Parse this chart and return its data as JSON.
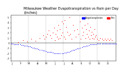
{
  "title": "Milwaukee Weather Evapotranspiration vs Rain per Day\n(Inches)",
  "title_fontsize": 3.5,
  "background_color": "#ffffff",
  "legend_labels": [
    "Evapotranspiration",
    "Rain"
  ],
  "et_color": "#0000ff",
  "rain_color": "#ff0000",
  "xlim": [
    0,
    365
  ],
  "ylim": [
    -0.35,
    0.55
  ],
  "ytick_labels": [
    "-.3",
    "-.2",
    "-.1",
    "0",
    ".1",
    ".2",
    ".3",
    ".4",
    ".5"
  ],
  "ytick_values": [
    -0.3,
    -0.2,
    -0.1,
    0.0,
    0.1,
    0.2,
    0.3,
    0.4,
    0.5
  ],
  "vline_positions": [
    60,
    120,
    180,
    240,
    300
  ],
  "et_days": [
    1,
    5,
    10,
    15,
    20,
    25,
    30,
    35,
    40,
    45,
    50,
    55,
    60,
    65,
    70,
    75,
    80,
    85,
    90,
    95,
    100,
    105,
    110,
    115,
    120,
    125,
    130,
    135,
    140,
    145,
    150,
    155,
    160,
    165,
    170,
    175,
    180,
    185,
    190,
    195,
    200,
    205,
    210,
    215,
    220,
    225,
    230,
    235,
    240,
    245,
    250,
    255,
    260,
    265,
    270,
    275,
    280,
    285,
    290,
    295,
    300,
    305,
    310,
    315,
    320,
    325,
    330,
    335,
    340,
    345,
    350,
    355,
    360,
    365
  ],
  "et_values": [
    -0.01,
    -0.01,
    -0.02,
    -0.02,
    -0.02,
    -0.03,
    -0.03,
    -0.04,
    -0.04,
    -0.05,
    -0.05,
    -0.05,
    -0.06,
    -0.07,
    -0.08,
    -0.09,
    -0.09,
    -0.1,
    -0.11,
    -0.12,
    -0.13,
    -0.14,
    -0.15,
    -0.15,
    -0.16,
    -0.17,
    -0.17,
    -0.18,
    -0.18,
    -0.19,
    -0.2,
    -0.2,
    -0.2,
    -0.2,
    -0.2,
    -0.2,
    -0.2,
    -0.19,
    -0.19,
    -0.18,
    -0.17,
    -0.16,
    -0.15,
    -0.14,
    -0.13,
    -0.12,
    -0.11,
    -0.1,
    -0.09,
    -0.08,
    -0.07,
    -0.06,
    -0.05,
    -0.05,
    -0.04,
    -0.03,
    -0.03,
    -0.02,
    -0.02,
    -0.02,
    -0.01,
    -0.01,
    -0.01,
    -0.01,
    -0.01,
    -0.01,
    -0.01,
    -0.01,
    -0.01,
    -0.01,
    -0.01,
    -0.01,
    -0.01,
    -0.01
  ],
  "rain_days": [
    25,
    40,
    55,
    70,
    85,
    100,
    110,
    115,
    120,
    125,
    130,
    135,
    140,
    145,
    150,
    153,
    155,
    158,
    160,
    163,
    165,
    168,
    170,
    173,
    175,
    178,
    180,
    183,
    185,
    188,
    190,
    195,
    200,
    203,
    205,
    210,
    215,
    220,
    225,
    230,
    235,
    240,
    242,
    245,
    248,
    250,
    255,
    258,
    260,
    263,
    265,
    268,
    270,
    273,
    275,
    278,
    280,
    283,
    285,
    288,
    290,
    293,
    295,
    300,
    305,
    310,
    315,
    320,
    325,
    330,
    335,
    340,
    345,
    350
  ],
  "rain_values": [
    0.02,
    0.05,
    0.03,
    0.08,
    0.04,
    0.1,
    0.15,
    0.08,
    0.12,
    0.18,
    0.25,
    0.15,
    0.1,
    0.2,
    0.3,
    0.05,
    0.18,
    0.12,
    0.25,
    0.08,
    0.35,
    0.1,
    0.28,
    0.15,
    0.42,
    0.2,
    0.38,
    0.12,
    0.45,
    0.08,
    0.32,
    0.22,
    0.15,
    0.5,
    0.18,
    0.08,
    0.35,
    0.25,
    0.12,
    0.28,
    0.18,
    0.42,
    0.08,
    0.3,
    0.15,
    0.22,
    0.35,
    0.1,
    0.28,
    0.18,
    0.38,
    0.12,
    0.25,
    0.08,
    0.32,
    0.15,
    0.22,
    0.1,
    0.18,
    0.08,
    0.28,
    0.12,
    0.15,
    0.08,
    0.05,
    0.1,
    0.08,
    0.05,
    0.08,
    0.05,
    0.08,
    0.05,
    0.08,
    0.05
  ]
}
